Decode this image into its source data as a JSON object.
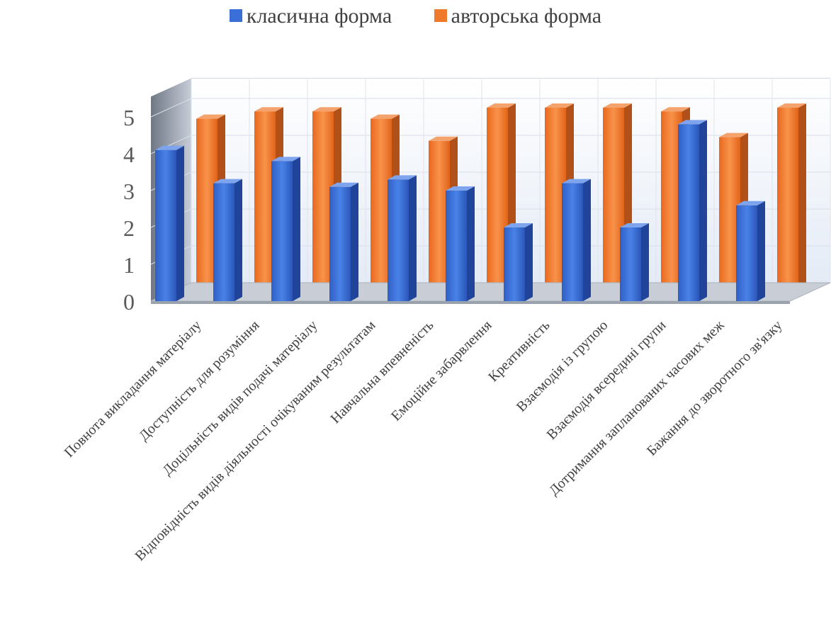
{
  "chart_data": {
    "type": "bar",
    "categories": [
      "Повнота викладання матеріалу",
      "Доступність для розуміння",
      "Доцільність видів подачі матеріалу",
      "Відповідність видів діяльності очікуваним результатам",
      "Навчальна впевненість",
      "Емоційне забарвлення",
      "Креативність",
      "Взаємодія  із групою",
      "Взаємодія всередині групи",
      "Дотримання запланованих часових меж",
      "Бажання до зворотного зв'язку"
    ],
    "series": [
      {
        "name": "класична форма",
        "color": "#3a6fd8",
        "values": [
          4.1,
          3.2,
          3.8,
          3.1,
          3.3,
          3.0,
          2.0,
          3.2,
          2.0,
          4.8,
          2.6
        ]
      },
      {
        "name": "авторська форма",
        "color": "#f07a2b",
        "values": [
          4.7,
          4.9,
          4.9,
          4.7,
          4.1,
          5.0,
          5.0,
          5.0,
          4.9,
          4.2,
          5.0
        ]
      }
    ],
    "yticks": [
      0,
      1,
      2,
      3,
      4,
      5
    ],
    "ylim": [
      0,
      5
    ],
    "grid": true,
    "legend_position": "top",
    "chart_style": "3d-column"
  }
}
